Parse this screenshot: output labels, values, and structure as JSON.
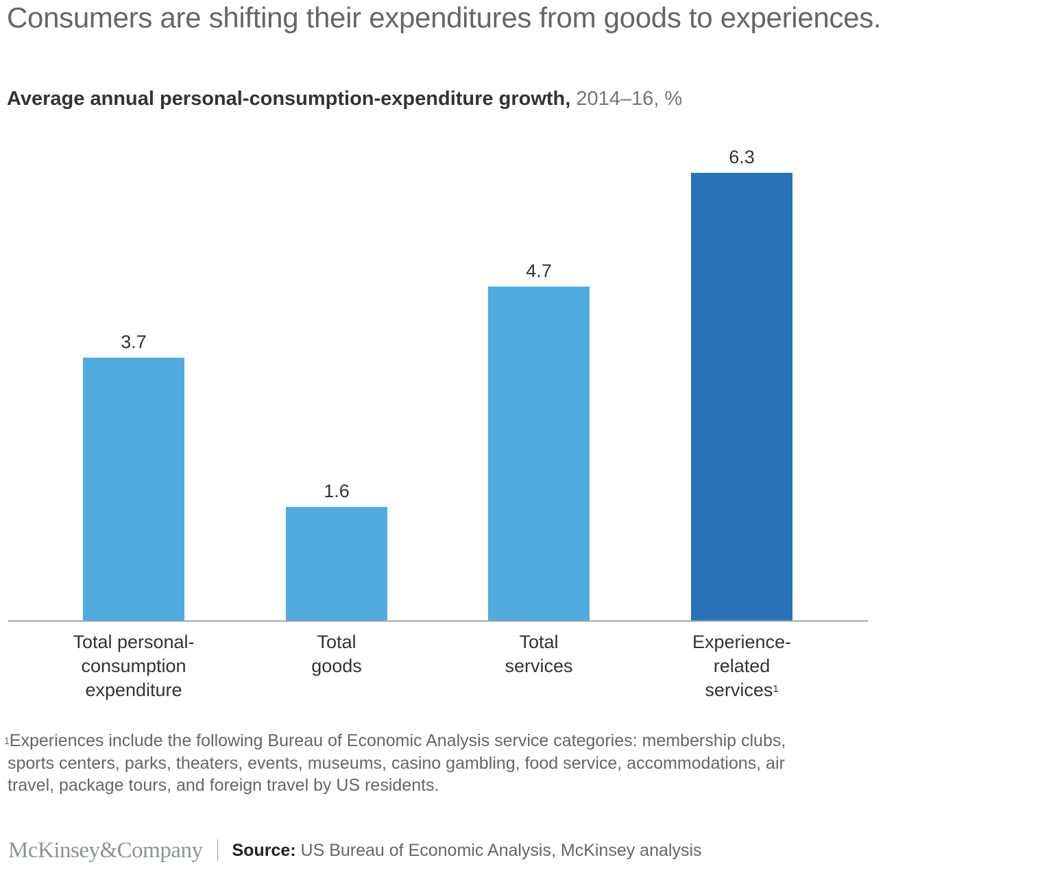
{
  "headline": "Consumers are shifting their expenditures from goods to experiences.",
  "chart_data": {
    "type": "bar",
    "title": "Average annual personal-consumption-expenditure growth,",
    "title_units": "2014–16, %",
    "xlabel": "",
    "ylabel": "",
    "ylim": [
      0,
      6.3
    ],
    "grid": false,
    "categories": [
      [
        "Total personal-",
        "consumption",
        "expenditure"
      ],
      [
        "Total",
        "goods"
      ],
      [
        "Total",
        "services"
      ],
      [
        "Experience-",
        "related",
        "services"
      ]
    ],
    "category_footnote_marks": [
      "",
      "",
      "",
      "1"
    ],
    "values": [
      3.7,
      1.6,
      4.7,
      6.3
    ],
    "value_labels": [
      "3.7",
      "1.6",
      "4.7",
      "6.3"
    ],
    "colors": [
      "#4fabe0",
      "#4fabe0",
      "#4fabe0",
      "#2a72b7"
    ],
    "axis_color": "#a0a0a0"
  },
  "footnote": {
    "mark": "1",
    "lines": [
      "Experiences include the following Bureau of Economic Analysis service categories: membership clubs,",
      "sports centers, parks, theaters, events, museums, casino gambling, food service, accommodations, air",
      "travel, package tours, and foreign travel by US residents."
    ]
  },
  "footer": {
    "logo": "McKinsey&Company",
    "source_label": "Source:",
    "source_text": "US Bureau of Economic Analysis, McKinsey analysis"
  }
}
